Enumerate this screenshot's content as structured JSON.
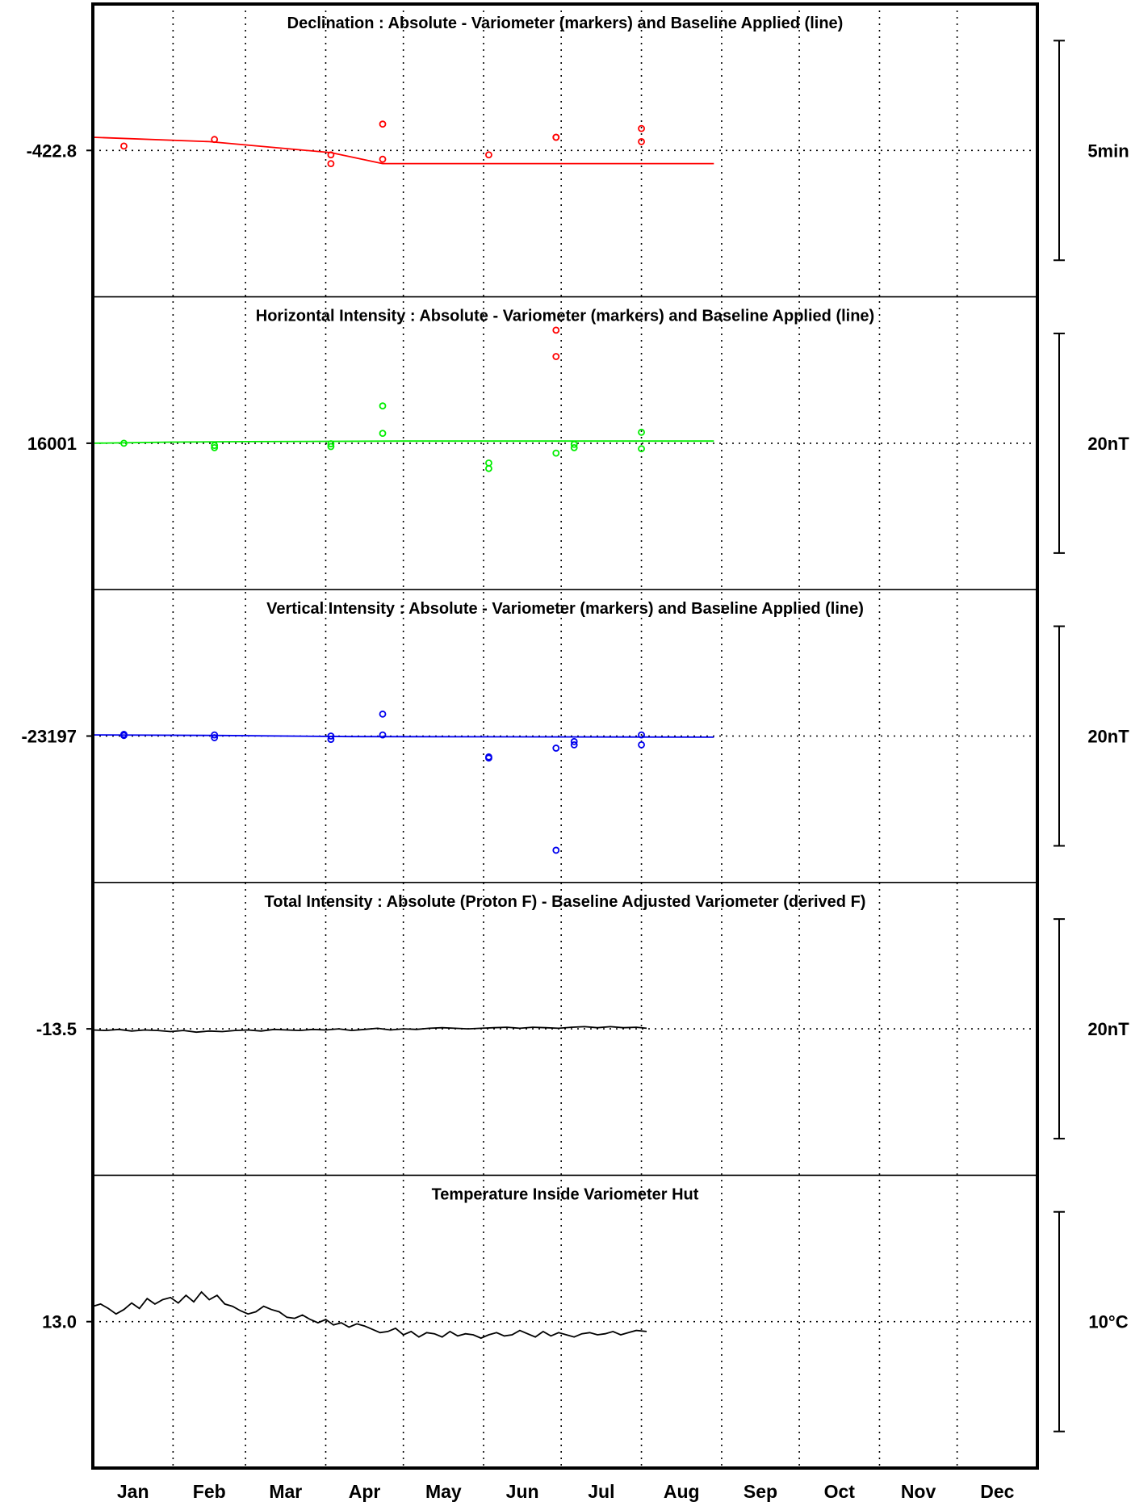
{
  "chart_data": {
    "type": "scatter",
    "months": [
      "Jan",
      "Feb",
      "Mar",
      "Apr",
      "May",
      "Jun",
      "Jul",
      "Aug",
      "Sep",
      "Oct",
      "Nov",
      "Dec"
    ],
    "xlim": [
      0,
      365
    ],
    "panels": [
      {
        "id": "declination",
        "title": "Declination : Absolute - Variometer (markers) and Baseline Applied (line)",
        "ylabel": "-422.8",
        "scale_label": "5min",
        "color": "#ff0000",
        "center": 0,
        "half_range": 2.5,
        "markers": [
          [
            12,
            0.1
          ],
          [
            47,
            0.25
          ],
          [
            92,
            -0.1
          ],
          [
            92,
            -0.3
          ],
          [
            112,
            0.6
          ],
          [
            112,
            -0.2
          ],
          [
            153,
            -0.1
          ],
          [
            179,
            0.3
          ],
          [
            179,
            0.3
          ],
          [
            212,
            0.5
          ],
          [
            212,
            0.2
          ]
        ],
        "line": [
          [
            0,
            0.3
          ],
          [
            45,
            0.2
          ],
          [
            92,
            -0.05
          ],
          [
            112,
            -0.3
          ],
          [
            240,
            -0.3
          ]
        ]
      },
      {
        "id": "horizontal",
        "title": "Horizontal Intensity : Absolute - Variometer (markers) and Baseline Applied (line)",
        "ylabel": "16001",
        "scale_label": "20nT",
        "color": "#00ee00",
        "center": 0,
        "half_range": 10,
        "markers": [
          [
            12,
            0
          ],
          [
            47,
            -0.2
          ],
          [
            47,
            -0.4
          ],
          [
            92,
            -0.05
          ],
          [
            92,
            -0.3
          ],
          [
            112,
            3.4
          ],
          [
            112,
            0.9
          ],
          [
            153,
            -1.8
          ],
          [
            153,
            -2.3
          ],
          [
            179,
            -0.9
          ],
          [
            186,
            -0.1
          ],
          [
            186,
            -0.4
          ],
          [
            212,
            1.0
          ],
          [
            212,
            -0.5
          ]
        ],
        "outliers": [
          [
            179,
            10.3
          ],
          [
            179,
            7.9
          ]
        ],
        "line": [
          [
            0,
            0
          ],
          [
            30,
            0.1
          ],
          [
            60,
            0.15
          ],
          [
            120,
            0.2
          ],
          [
            240,
            0.2
          ]
        ]
      },
      {
        "id": "vertical",
        "title": "Vertical Intensity : Absolute - Variometer (markers) and Baseline Applied (line)",
        "ylabel": "-23197",
        "scale_label": "20nT",
        "color": "#0000ee",
        "center": 0,
        "half_range": 10,
        "markers": [
          [
            12,
            0.15
          ],
          [
            12,
            0.05
          ],
          [
            47,
            0.1
          ],
          [
            47,
            -0.15
          ],
          [
            92,
            0
          ],
          [
            92,
            -0.3
          ],
          [
            112,
            2.0
          ],
          [
            112,
            0.1
          ],
          [
            153,
            -1.9
          ],
          [
            153,
            -2.0
          ],
          [
            179,
            -1.1
          ],
          [
            179,
            -10.4
          ],
          [
            186,
            -0.5
          ],
          [
            186,
            -0.8
          ],
          [
            212,
            0.1
          ],
          [
            212,
            -0.8
          ]
        ],
        "line": [
          [
            0,
            0.1
          ],
          [
            50,
            0.05
          ],
          [
            100,
            -0.05
          ],
          [
            240,
            -0.1
          ]
        ]
      },
      {
        "id": "total",
        "title": "Total Intensity : Absolute (Proton F) - Baseline Adjusted Variometer (derived F)",
        "ylabel": "-13.5",
        "scale_label": "20nT",
        "color": "#000000",
        "center": 0,
        "half_range": 10,
        "line": [
          [
            0,
            -0.1
          ],
          [
            5,
            -0.15
          ],
          [
            10,
            -0.05
          ],
          [
            15,
            -0.2
          ],
          [
            20,
            -0.1
          ],
          [
            25,
            -0.15
          ],
          [
            30,
            -0.25
          ],
          [
            35,
            -0.15
          ],
          [
            40,
            -0.3
          ],
          [
            45,
            -0.2
          ],
          [
            50,
            -0.25
          ],
          [
            55,
            -0.15
          ],
          [
            60,
            -0.1
          ],
          [
            65,
            -0.2
          ],
          [
            70,
            -0.05
          ],
          [
            75,
            -0.1
          ],
          [
            80,
            -0.15
          ],
          [
            85,
            -0.05
          ],
          [
            90,
            -0.1
          ],
          [
            95,
            0
          ],
          [
            100,
            -0.15
          ],
          [
            105,
            -0.05
          ],
          [
            110,
            0.05
          ],
          [
            115,
            -0.1
          ],
          [
            120,
            0
          ],
          [
            125,
            -0.05
          ],
          [
            130,
            0.05
          ],
          [
            135,
            0.1
          ],
          [
            140,
            0.05
          ],
          [
            145,
            0
          ],
          [
            150,
            0.05
          ],
          [
            155,
            0.1
          ],
          [
            160,
            0.15
          ],
          [
            165,
            0.05
          ],
          [
            170,
            0.15
          ],
          [
            175,
            0.1
          ],
          [
            180,
            0.05
          ],
          [
            185,
            0.15
          ],
          [
            190,
            0.2
          ],
          [
            195,
            0.1
          ],
          [
            200,
            0.2
          ],
          [
            205,
            0.1
          ],
          [
            210,
            0.15
          ],
          [
            214,
            0.05
          ]
        ]
      },
      {
        "id": "temperature",
        "title": "Temperature Inside Variometer Hut",
        "ylabel": "13.0",
        "scale_label": "10°C",
        "color": "#000000",
        "center": 0,
        "half_range": 5,
        "line": [
          [
            0,
            0.7
          ],
          [
            3,
            0.8
          ],
          [
            6,
            0.6
          ],
          [
            9,
            0.35
          ],
          [
            12,
            0.55
          ],
          [
            15,
            0.85
          ],
          [
            18,
            0.6
          ],
          [
            21,
            1.05
          ],
          [
            24,
            0.8
          ],
          [
            27,
            1.0
          ],
          [
            30,
            1.1
          ],
          [
            33,
            0.85
          ],
          [
            36,
            1.2
          ],
          [
            39,
            0.9
          ],
          [
            42,
            1.35
          ],
          [
            45,
            1.0
          ],
          [
            48,
            1.2
          ],
          [
            51,
            0.8
          ],
          [
            54,
            0.7
          ],
          [
            57,
            0.5
          ],
          [
            60,
            0.35
          ],
          [
            63,
            0.45
          ],
          [
            66,
            0.7
          ],
          [
            69,
            0.55
          ],
          [
            72,
            0.45
          ],
          [
            75,
            0.2
          ],
          [
            78,
            0.15
          ],
          [
            81,
            0.3
          ],
          [
            84,
            0.1
          ],
          [
            87,
            -0.05
          ],
          [
            90,
            0.1
          ],
          [
            93,
            -0.15
          ],
          [
            96,
            -0.05
          ],
          [
            99,
            -0.25
          ],
          [
            102,
            -0.1
          ],
          [
            105,
            -0.2
          ],
          [
            108,
            -0.35
          ],
          [
            111,
            -0.5
          ],
          [
            114,
            -0.45
          ],
          [
            117,
            -0.3
          ],
          [
            120,
            -0.6
          ],
          [
            123,
            -0.45
          ],
          [
            126,
            -0.7
          ],
          [
            129,
            -0.5
          ],
          [
            132,
            -0.55
          ],
          [
            135,
            -0.7
          ],
          [
            138,
            -0.45
          ],
          [
            141,
            -0.65
          ],
          [
            144,
            -0.55
          ],
          [
            147,
            -0.6
          ],
          [
            150,
            -0.75
          ],
          [
            153,
            -0.6
          ],
          [
            156,
            -0.5
          ],
          [
            159,
            -0.65
          ],
          [
            162,
            -0.6
          ],
          [
            165,
            -0.4
          ],
          [
            168,
            -0.55
          ],
          [
            171,
            -0.7
          ],
          [
            174,
            -0.45
          ],
          [
            177,
            -0.65
          ],
          [
            180,
            -0.5
          ],
          [
            183,
            -0.6
          ],
          [
            186,
            -0.7
          ],
          [
            189,
            -0.55
          ],
          [
            192,
            -0.5
          ],
          [
            195,
            -0.6
          ],
          [
            198,
            -0.55
          ],
          [
            201,
            -0.45
          ],
          [
            204,
            -0.6
          ],
          [
            207,
            -0.5
          ],
          [
            210,
            -0.4
          ],
          [
            214,
            -0.45
          ]
        ]
      }
    ]
  }
}
